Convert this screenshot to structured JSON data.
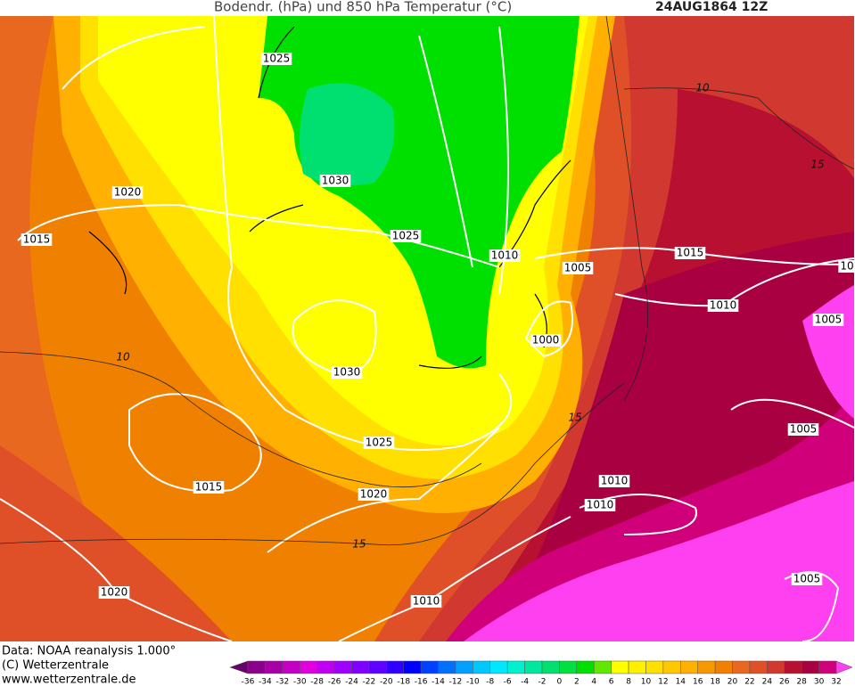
{
  "header": {
    "title": "Bodendr. (hPa) und 850 hPa Temperatur (°C)",
    "date": "24AUG1864 12Z"
  },
  "isobar_labels": [
    "1025",
    "1030",
    "1020",
    "1015",
    "1025",
    "1010",
    "1005",
    "1015",
    "1010",
    "1005",
    "10",
    "1000",
    "1030",
    "1005",
    "1025",
    "1015",
    "1020",
    "1010",
    "1010",
    "1010",
    "1005",
    "1020"
  ],
  "isotherm_labels": [
    "10",
    "15",
    "10",
    "15",
    "15"
  ],
  "footer": {
    "data": "Data: NOAA reanalysis 1.000°",
    "copyright": "(C) Wetterzentrale",
    "url": "www.wetterzentrale.de"
  },
  "colorbar": {
    "ticks": [
      -36,
      -34,
      -32,
      -30,
      -28,
      -26,
      -24,
      -22,
      -20,
      -18,
      -16,
      -14,
      -12,
      -10,
      -8,
      -6,
      -4,
      -2,
      0,
      2,
      4,
      6,
      8,
      10,
      12,
      14,
      16,
      18,
      20,
      22,
      24,
      26,
      28,
      30,
      32
    ],
    "colors": [
      "#6b006b",
      "#8b008b",
      "#a800a8",
      "#c400c4",
      "#e000e0",
      "#c000f0",
      "#a000ff",
      "#8000ff",
      "#6000ff",
      "#3000ff",
      "#0000ff",
      "#0040ff",
      "#0070ff",
      "#00a0ff",
      "#00c8ff",
      "#00e8ff",
      "#00f0d0",
      "#00e8a0",
      "#00e070",
      "#00e040",
      "#00e000",
      "#60e800",
      "#ffff00",
      "#fff000",
      "#ffe000",
      "#ffc800",
      "#ffb000",
      "#f89800",
      "#f08000",
      "#e86820",
      "#e05028",
      "#d03830",
      "#b81030",
      "#a80040",
      "#d0007a",
      "#ff40f0"
    ]
  }
}
